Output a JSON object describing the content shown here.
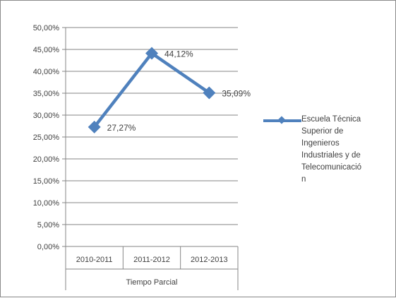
{
  "chart_data": {
    "type": "line",
    "categories": [
      "2010-2011",
      "2011-2012",
      "2012-2013"
    ],
    "category_group_label": "Tiempo Parcial",
    "series": [
      {
        "name": "Escuela Técnica Superior de Ingenieros Industriales y de Telecomunicación",
        "values": [
          27.27,
          44.12,
          35.09
        ],
        "data_labels": [
          "27,27%",
          "44,12%",
          "35,09%"
        ],
        "color": "#4f81bd",
        "marker": "diamond"
      }
    ],
    "y_ticks": [
      "0,00%",
      "5,00%",
      "10,00%",
      "15,00%",
      "20,00%",
      "25,00%",
      "30,00%",
      "35,00%",
      "40,00%",
      "45,00%",
      "50,00%"
    ],
    "ylim": [
      0,
      50
    ],
    "grid": true,
    "legend_position": "right",
    "legend_lines": [
      "Escuela Técnica",
      "Superior de",
      "Ingenieros",
      "Industriales y de",
      "Telecomunicació",
      "n"
    ]
  }
}
